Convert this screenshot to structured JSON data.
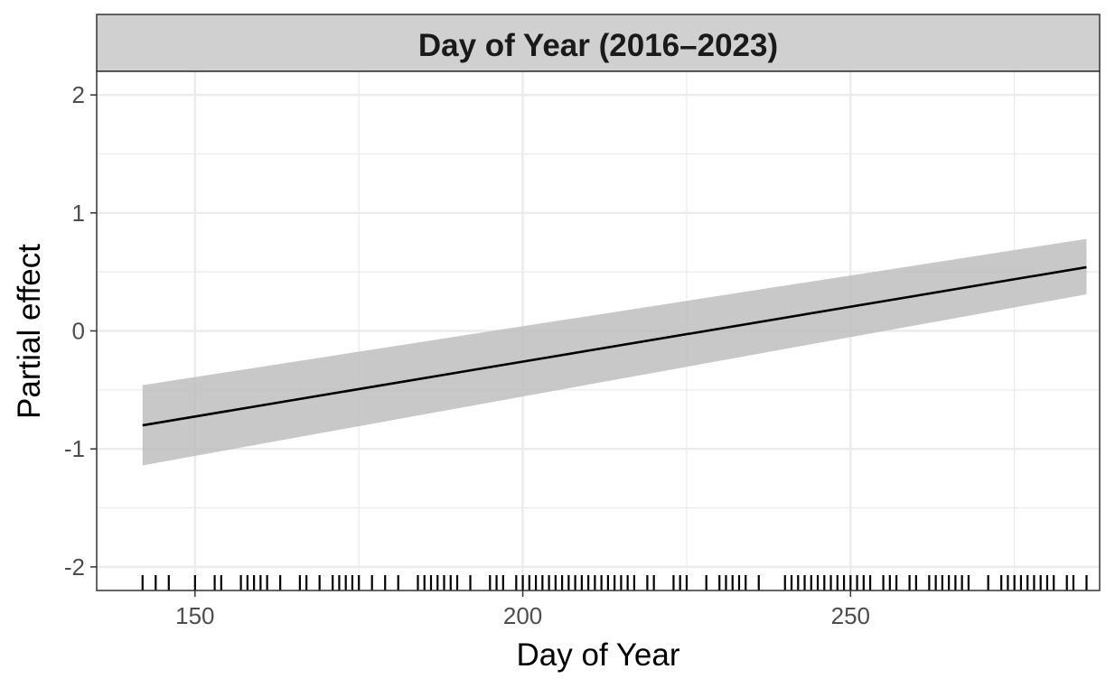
{
  "chart_data": {
    "type": "line",
    "title": "Day of Year (2016–2023)",
    "xlabel": "Day of Year",
    "ylabel": "Partial effect",
    "xlim": [
      135,
      288
    ],
    "ylim": [
      -2.2,
      2.2
    ],
    "x_ticks": [
      150,
      200,
      250
    ],
    "y_ticks": [
      -2,
      -1,
      0,
      1,
      2
    ],
    "y_tick_labels": [
      "-2",
      "-1",
      "0",
      "1",
      "2"
    ],
    "grid": true,
    "legend": "none",
    "colors": {
      "line": "#000000",
      "ribbon": "#bebebe",
      "strip_fill": "#d0d0d0",
      "grid": "#ebebeb",
      "rug": "#000000"
    },
    "series": [
      {
        "x": [
          142,
          286
        ],
        "y": [
          -0.8,
          0.54
        ],
        "lower": [
          -1.14,
          0.31
        ],
        "upper": [
          -0.46,
          0.78
        ]
      }
    ],
    "rug_x": [
      142,
      144,
      146,
      150,
      153,
      154,
      157,
      158,
      159,
      160,
      161,
      163,
      166,
      167,
      169,
      171,
      172,
      173,
      174,
      175,
      177,
      179,
      181,
      184,
      185,
      186,
      187,
      188,
      189,
      190,
      192,
      195,
      196,
      197,
      199,
      200,
      201,
      202,
      203,
      204,
      205,
      206,
      207,
      208,
      209,
      210,
      211,
      212,
      213,
      214,
      215,
      216,
      217,
      219,
      220,
      223,
      224,
      225,
      228,
      230,
      231,
      232,
      233,
      234,
      236,
      240,
      241,
      242,
      243,
      244,
      245,
      246,
      247,
      248,
      249,
      250,
      251,
      252,
      253,
      255,
      256,
      257,
      259,
      260,
      262,
      263,
      264,
      265,
      266,
      267,
      268,
      271,
      273,
      274,
      275,
      276,
      277,
      278,
      279,
      280,
      281,
      283,
      284,
      286
    ]
  }
}
